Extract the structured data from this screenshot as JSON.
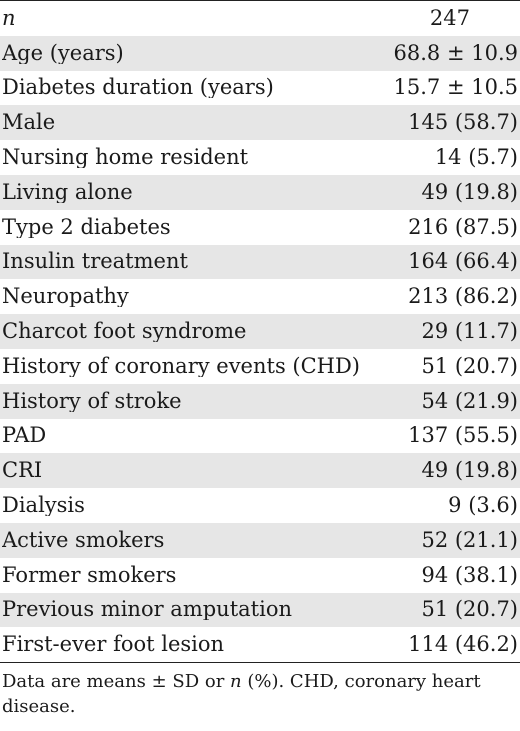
{
  "table": {
    "header": {
      "label": "n",
      "value": "247"
    },
    "rows": [
      {
        "label": "Age (years)",
        "value": "68.8 ± 10.9"
      },
      {
        "label": "Diabetes duration (years)",
        "value": "15.7 ± 10.5"
      },
      {
        "label": "Male",
        "value": "145 (58.7)"
      },
      {
        "label": "Nursing home resident",
        "value": "14 (5.7)"
      },
      {
        "label": "Living alone",
        "value": "49 (19.8)"
      },
      {
        "label": "Type 2 diabetes",
        "value": "216 (87.5)"
      },
      {
        "label": "Insulin treatment",
        "value": "164 (66.4)"
      },
      {
        "label": "Neuropathy",
        "value": "213 (86.2)"
      },
      {
        "label": "Charcot foot syndrome",
        "value": "29 (11.7)"
      },
      {
        "label": "History of coronary events (CHD)",
        "value": "51 (20.7)"
      },
      {
        "label": "History of stroke",
        "value": "54 (21.9)"
      },
      {
        "label": "PAD",
        "value": "137 (55.5)"
      },
      {
        "label": "CRI",
        "value": "49 (19.8)"
      },
      {
        "label": "Dialysis",
        "value": "9 (3.6)"
      },
      {
        "label": "Active smokers",
        "value": "52 (21.1)"
      },
      {
        "label": "Former smokers",
        "value": "94 (38.1)"
      },
      {
        "label": "Previous minor amputation",
        "value": "51 (20.7)"
      },
      {
        "label": "First-ever foot lesion",
        "value": "114 (46.2)"
      }
    ]
  },
  "footnote": {
    "part1": "Data are means ± SD or ",
    "italic_n": "n",
    "part2": " (%). CHD, coronary heart disease."
  }
}
